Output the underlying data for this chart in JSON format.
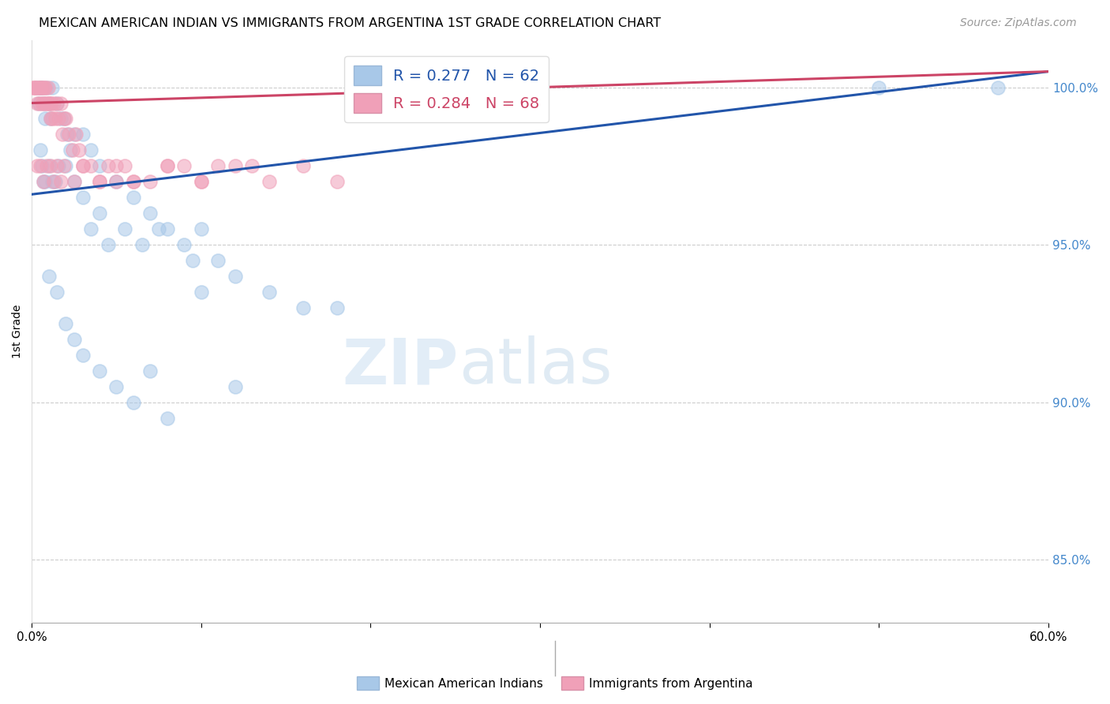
{
  "title": "MEXICAN AMERICAN INDIAN VS IMMIGRANTS FROM ARGENTINA 1ST GRADE CORRELATION CHART",
  "source": "Source: ZipAtlas.com",
  "ylabel": "1st Grade",
  "xlim": [
    0.0,
    60.0
  ],
  "ylim": [
    83.0,
    101.5
  ],
  "yticks": [
    85.0,
    90.0,
    95.0,
    100.0
  ],
  "xtick_vals": [
    0.0,
    10.0,
    20.0,
    30.0,
    40.0,
    50.0,
    60.0
  ],
  "xtick_labels": [
    "0.0%",
    "",
    "",
    "",
    "",
    "",
    "60.0%"
  ],
  "legend_r_blue": "R = 0.277",
  "legend_n_blue": "N = 62",
  "legend_r_pink": "R = 0.284",
  "legend_n_pink": "N = 68",
  "blue_color": "#A8C8E8",
  "pink_color": "#F0A0B8",
  "blue_line_color": "#2255AA",
  "pink_line_color": "#CC4466",
  "blue_line_x0": 0.0,
  "blue_line_y0": 96.6,
  "blue_line_x1": 60.0,
  "blue_line_y1": 100.5,
  "pink_line_x0": 0.0,
  "pink_line_y0": 99.5,
  "pink_line_x1": 60.0,
  "pink_line_y1": 100.5,
  "blue_x": [
    0.3,
    0.4,
    0.5,
    0.6,
    0.7,
    0.8,
    0.9,
    1.0,
    1.1,
    1.2,
    1.5,
    1.7,
    1.9,
    2.1,
    2.3,
    2.5,
    3.0,
    3.5,
    4.0,
    0.5,
    0.6,
    0.7,
    0.8,
    1.0,
    1.2,
    1.4,
    1.6,
    2.0,
    2.5,
    3.0,
    4.0,
    5.0,
    6.0,
    7.0,
    8.0,
    9.0,
    10.0,
    11.0,
    12.0,
    14.0,
    16.0,
    18.0,
    3.5,
    4.5,
    5.5,
    6.5,
    7.5,
    9.5,
    50.0,
    57.0,
    1.0,
    1.5,
    2.0,
    2.5,
    3.0,
    4.0,
    5.0,
    6.0,
    7.0,
    8.0,
    10.0,
    12.0
  ],
  "blue_y": [
    100.0,
    99.5,
    100.0,
    100.0,
    99.5,
    99.0,
    100.0,
    99.5,
    99.0,
    100.0,
    99.5,
    99.0,
    99.0,
    98.5,
    98.0,
    98.5,
    98.5,
    98.0,
    97.5,
    98.0,
    97.5,
    97.0,
    97.0,
    97.5,
    97.0,
    97.0,
    97.5,
    97.5,
    97.0,
    96.5,
    96.0,
    97.0,
    96.5,
    96.0,
    95.5,
    95.0,
    95.5,
    94.5,
    94.0,
    93.5,
    93.0,
    93.0,
    95.5,
    95.0,
    95.5,
    95.0,
    95.5,
    94.5,
    100.0,
    100.0,
    94.0,
    93.5,
    92.5,
    92.0,
    91.5,
    91.0,
    90.5,
    90.0,
    91.0,
    89.5,
    93.5,
    90.5
  ],
  "pink_x": [
    0.1,
    0.15,
    0.2,
    0.25,
    0.3,
    0.35,
    0.4,
    0.45,
    0.5,
    0.55,
    0.6,
    0.65,
    0.7,
    0.75,
    0.8,
    0.85,
    0.9,
    0.95,
    1.0,
    1.05,
    1.1,
    1.15,
    1.2,
    1.3,
    1.4,
    1.5,
    1.6,
    1.7,
    1.8,
    1.9,
    2.0,
    2.2,
    2.4,
    2.6,
    2.8,
    3.0,
    3.5,
    4.0,
    4.5,
    5.0,
    5.5,
    6.0,
    7.0,
    8.0,
    9.0,
    10.0,
    11.0,
    12.0,
    14.0,
    16.0,
    18.0,
    0.3,
    0.5,
    0.7,
    0.9,
    1.1,
    1.3,
    1.5,
    1.7,
    1.9,
    2.5,
    3.0,
    4.0,
    5.0,
    6.0,
    8.0,
    10.0,
    13.0
  ],
  "pink_y": [
    100.0,
    100.0,
    100.0,
    100.0,
    99.5,
    100.0,
    100.0,
    99.5,
    100.0,
    100.0,
    99.5,
    100.0,
    99.5,
    100.0,
    100.0,
    99.5,
    99.5,
    100.0,
    99.5,
    99.5,
    99.0,
    99.5,
    99.0,
    99.5,
    99.0,
    99.5,
    99.0,
    99.5,
    98.5,
    99.0,
    99.0,
    98.5,
    98.0,
    98.5,
    98.0,
    97.5,
    97.5,
    97.0,
    97.5,
    97.0,
    97.5,
    97.0,
    97.0,
    97.5,
    97.5,
    97.0,
    97.5,
    97.5,
    97.0,
    97.5,
    97.0,
    97.5,
    97.5,
    97.0,
    97.5,
    97.5,
    97.0,
    97.5,
    97.0,
    97.5,
    97.0,
    97.5,
    97.0,
    97.5,
    97.0,
    97.5,
    97.0,
    97.5
  ]
}
